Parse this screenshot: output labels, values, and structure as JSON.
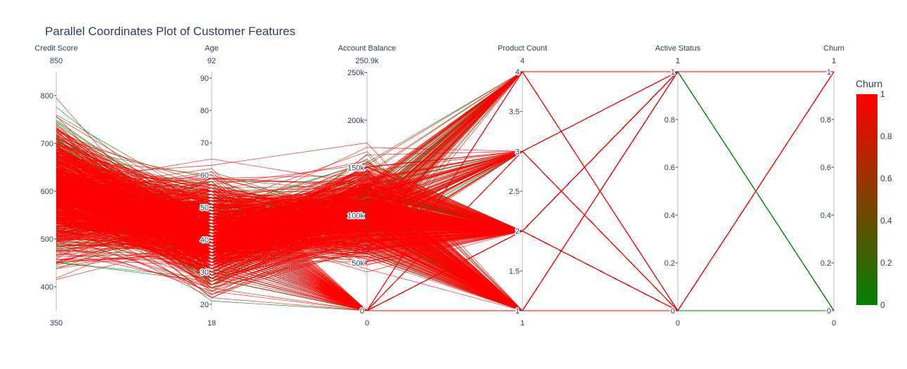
{
  "chart_data": {
    "type": "parallel_coordinates",
    "title": "Parallel Coordinates Plot of Customer Features",
    "color_by": "Churn",
    "colorscale": {
      "low": "#008000",
      "high": "#ff0000"
    },
    "colorbar": {
      "title": "Churn",
      "range": [
        0,
        1
      ],
      "ticks": [
        {
          "value": 0,
          "label": "0"
        },
        {
          "value": 0.2,
          "label": "0.2"
        },
        {
          "value": 0.4,
          "label": "0.4"
        },
        {
          "value": 0.6,
          "label": "0.6"
        },
        {
          "value": 0.8,
          "label": "0.8"
        },
        {
          "value": 1,
          "label": "1"
        }
      ]
    },
    "dimensions": [
      {
        "label": "Credit Score",
        "range": [
          350,
          850
        ],
        "range_min_label": "350",
        "range_max_label": "850",
        "ticks": [
          {
            "value": 400,
            "label": "400"
          },
          {
            "value": 500,
            "label": "500"
          },
          {
            "value": 600,
            "label": "600"
          },
          {
            "value": 700,
            "label": "700"
          },
          {
            "value": 800,
            "label": "800"
          }
        ]
      },
      {
        "label": "Age",
        "range": [
          18,
          92
        ],
        "range_min_label": "18",
        "range_max_label": "92",
        "ticks": [
          {
            "value": 20,
            "label": "20"
          },
          {
            "value": 30,
            "label": "30"
          },
          {
            "value": 40,
            "label": "40"
          },
          {
            "value": 50,
            "label": "50"
          },
          {
            "value": 60,
            "label": "60"
          },
          {
            "value": 70,
            "label": "70"
          },
          {
            "value": 80,
            "label": "80"
          },
          {
            "value": 90,
            "label": "90"
          }
        ]
      },
      {
        "label": "Account Balance",
        "range": [
          0,
          250900
        ],
        "range_min_label": "0",
        "range_max_label": "250.9k",
        "ticks": [
          {
            "value": 0,
            "label": "0"
          },
          {
            "value": 50000,
            "label": "50k"
          },
          {
            "value": 100000,
            "label": "100k"
          },
          {
            "value": 150000,
            "label": "150k"
          },
          {
            "value": 200000,
            "label": "200k"
          },
          {
            "value": 250000,
            "label": "250k"
          }
        ]
      },
      {
        "label": "Product Count",
        "range": [
          1,
          4
        ],
        "range_min_label": "1",
        "range_max_label": "4",
        "ticks": [
          {
            "value": 1,
            "label": "1"
          },
          {
            "value": 1.5,
            "label": "1.5"
          },
          {
            "value": 2,
            "label": "2"
          },
          {
            "value": 2.5,
            "label": "2.5"
          },
          {
            "value": 3,
            "label": "3"
          },
          {
            "value": 3.5,
            "label": "3.5"
          },
          {
            "value": 4,
            "label": "4"
          }
        ]
      },
      {
        "label": "Active Status",
        "range": [
          0,
          1
        ],
        "range_min_label": "0",
        "range_max_label": "1",
        "ticks": [
          {
            "value": 0,
            "label": "0"
          },
          {
            "value": 0.2,
            "label": "0.2"
          },
          {
            "value": 0.4,
            "label": "0.4"
          },
          {
            "value": 0.6,
            "label": "0.6"
          },
          {
            "value": 0.8,
            "label": "0.8"
          },
          {
            "value": 1,
            "label": "1"
          }
        ]
      },
      {
        "label": "Churn",
        "range": [
          0,
          1
        ],
        "range_min_label": "0",
        "range_max_label": "1",
        "ticks": [
          {
            "value": 0,
            "label": "0"
          },
          {
            "value": 0.2,
            "label": "0.2"
          },
          {
            "value": 0.4,
            "label": "0.4"
          },
          {
            "value": 0.6,
            "label": "0.6"
          },
          {
            "value": 0.8,
            "label": "0.8"
          },
          {
            "value": 1,
            "label": "1"
          }
        ]
      }
    ]
  }
}
